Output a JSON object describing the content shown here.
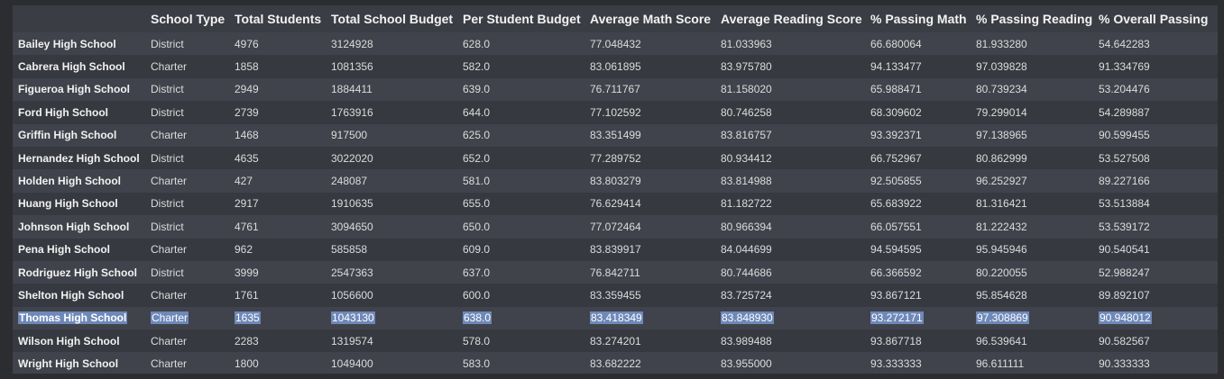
{
  "table": {
    "columns": [
      "",
      "School Type",
      "Total Students",
      "Total School Budget",
      "Per Student Budget",
      "Average Math Score",
      "Average Reading Score",
      "% Passing Math",
      "% Passing Reading",
      "% Overall Passing"
    ],
    "rows": [
      [
        "Bailey High School",
        "District",
        "4976",
        "3124928",
        "628.0",
        "77.048432",
        "81.033963",
        "66.680064",
        "81.933280",
        "54.642283"
      ],
      [
        "Cabrera High School",
        "Charter",
        "1858",
        "1081356",
        "582.0",
        "83.061895",
        "83.975780",
        "94.133477",
        "97.039828",
        "91.334769"
      ],
      [
        "Figueroa High School",
        "District",
        "2949",
        "1884411",
        "639.0",
        "76.711767",
        "81.158020",
        "65.988471",
        "80.739234",
        "53.204476"
      ],
      [
        "Ford High School",
        "District",
        "2739",
        "1763916",
        "644.0",
        "77.102592",
        "80.746258",
        "68.309602",
        "79.299014",
        "54.289887"
      ],
      [
        "Griffin High School",
        "Charter",
        "1468",
        "917500",
        "625.0",
        "83.351499",
        "83.816757",
        "93.392371",
        "97.138965",
        "90.599455"
      ],
      [
        "Hernandez High School",
        "District",
        "4635",
        "3022020",
        "652.0",
        "77.289752",
        "80.934412",
        "66.752967",
        "80.862999",
        "53.527508"
      ],
      [
        "Holden High School",
        "Charter",
        "427",
        "248087",
        "581.0",
        "83.803279",
        "83.814988",
        "92.505855",
        "96.252927",
        "89.227166"
      ],
      [
        "Huang High School",
        "District",
        "2917",
        "1910635",
        "655.0",
        "76.629414",
        "81.182722",
        "65.683922",
        "81.316421",
        "53.513884"
      ],
      [
        "Johnson High School",
        "District",
        "4761",
        "3094650",
        "650.0",
        "77.072464",
        "80.966394",
        "66.057551",
        "81.222432",
        "53.539172"
      ],
      [
        "Pena High School",
        "Charter",
        "962",
        "585858",
        "609.0",
        "83.839917",
        "84.044699",
        "94.594595",
        "95.945946",
        "90.540541"
      ],
      [
        "Rodriguez High School",
        "District",
        "3999",
        "2547363",
        "637.0",
        "76.842711",
        "80.744686",
        "66.366592",
        "80.220055",
        "52.988247"
      ],
      [
        "Shelton High School",
        "Charter",
        "1761",
        "1056600",
        "600.0",
        "83.359455",
        "83.725724",
        "93.867121",
        "95.854628",
        "89.892107"
      ],
      [
        "Thomas High School",
        "Charter",
        "1635",
        "1043130",
        "638.0",
        "83.418349",
        "83.848930",
        "93.272171",
        "97.308869",
        "90.948012"
      ],
      [
        "Wilson High School",
        "Charter",
        "2283",
        "1319574",
        "578.0",
        "83.274201",
        "83.989488",
        "93.867718",
        "96.539641",
        "90.582567"
      ],
      [
        "Wright High School",
        "Charter",
        "1800",
        "1049400",
        "583.0",
        "83.682222",
        "83.955000",
        "93.333333",
        "96.611111",
        "90.333333"
      ]
    ],
    "selected_row": "Thomas High School"
  },
  "colors": {
    "background": "#2b2d31",
    "table_background": "#3b3d44",
    "row_odd": "#40434b",
    "row_even": "#373940",
    "selection": "#6e88b8"
  }
}
